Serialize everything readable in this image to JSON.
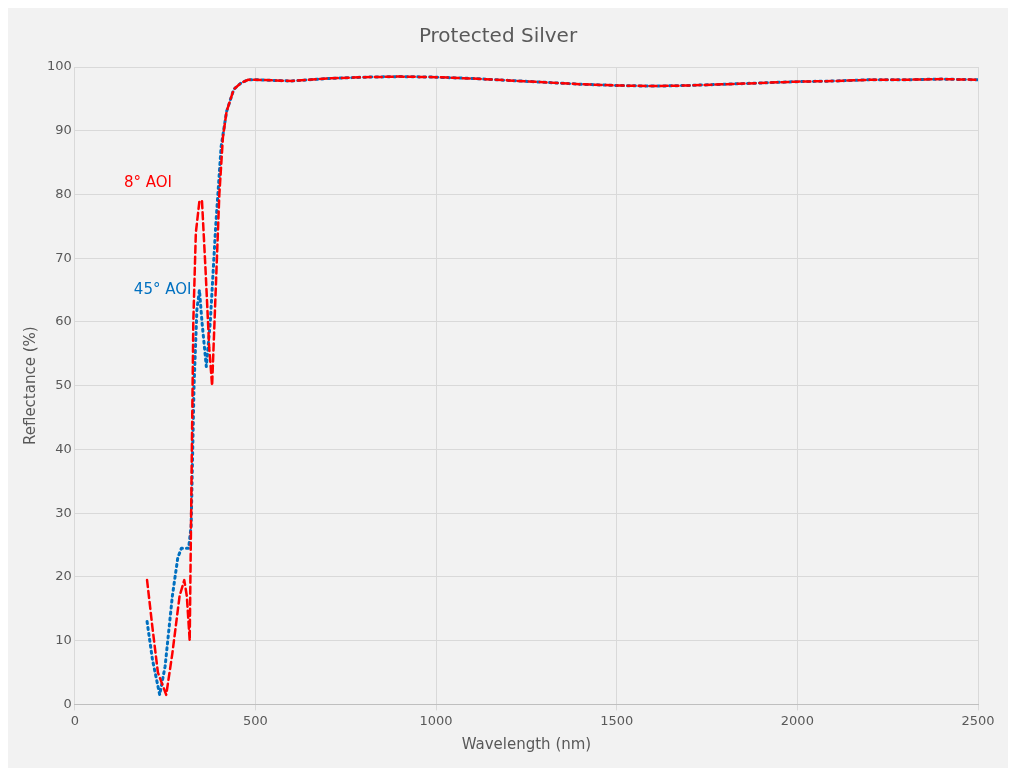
{
  "chart_data": {
    "type": "line",
    "title": "Protected Silver",
    "xlabel": "Wavelength (nm)",
    "ylabel": "Reflectance (%)",
    "xlim": [
      0,
      2500
    ],
    "xticks": [
      0,
      500,
      1000,
      1500,
      2000,
      2500
    ],
    "ylim": [
      0,
      100
    ],
    "yticks": [
      0,
      10,
      20,
      30,
      40,
      50,
      60,
      70,
      80,
      90,
      100
    ],
    "grid": true,
    "marker": "none",
    "series": [
      {
        "name": "8° AOI",
        "color": "#ff0000",
        "line_style": "dashed",
        "x": [
          200,
          215,
          230,
          253,
          270,
          290,
          303,
          310,
          318,
          322,
          328,
          335,
          345,
          352,
          362,
          372,
          380,
          390,
          400,
          410,
          420,
          440,
          460,
          480,
          500,
          600,
          700,
          800,
          900,
          1000,
          1100,
          1200,
          1300,
          1400,
          1500,
          1600,
          1700,
          1800,
          1900,
          2000,
          2100,
          2200,
          2300,
          2400,
          2500
        ],
        "values": [
          19.5,
          12,
          5,
          1.5,
          8,
          17,
          19.5,
          17,
          10,
          30,
          60,
          74,
          79,
          79,
          68,
          56,
          50,
          65,
          80,
          89,
          93,
          96.5,
          97.5,
          98,
          98,
          97.8,
          98.2,
          98.4,
          98.5,
          98.4,
          98.2,
          97.9,
          97.6,
          97.3,
          97.1,
          97,
          97.1,
          97.3,
          97.5,
          97.7,
          97.8,
          98,
          98,
          98.1,
          98
        ]
      },
      {
        "name": "45° AOI",
        "color": "#0070c0",
        "line_style": "dotted",
        "x": [
          200,
          215,
          235,
          250,
          270,
          285,
          295,
          315,
          322,
          330,
          338,
          345,
          352,
          364,
          375,
          390,
          405,
          420,
          440,
          460,
          480,
          500,
          600,
          700,
          800,
          900,
          1000,
          1100,
          1200,
          1300,
          1400,
          1500,
          1600,
          1700,
          1800,
          1900,
          2000,
          2100,
          2200,
          2300,
          2400,
          2500
        ],
        "values": [
          13,
          7,
          1.5,
          6,
          17,
          23,
          24.5,
          24.5,
          28,
          50,
          62,
          65,
          60,
          53,
          60,
          75,
          87.5,
          93,
          96.5,
          97.5,
          98,
          98,
          97.8,
          98.2,
          98.4,
          98.5,
          98.4,
          98.2,
          97.9,
          97.6,
          97.3,
          97.1,
          97,
          97.1,
          97.3,
          97.5,
          97.7,
          97.8,
          98,
          98,
          98.1,
          98
        ]
      }
    ]
  }
}
